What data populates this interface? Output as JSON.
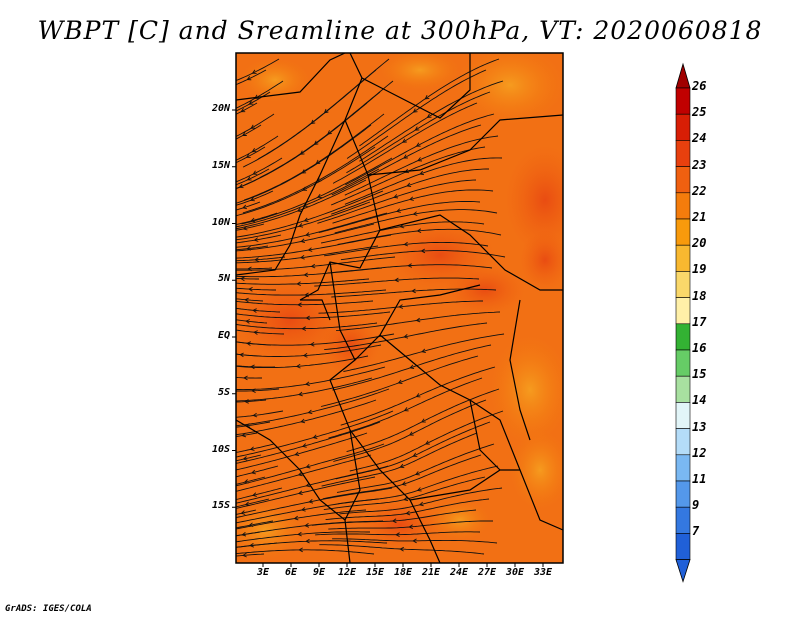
{
  "title": "WBPT [C] and Sreamline at 300hPa, VT: 2020060818",
  "credit": "GrADS: IGES/COLA",
  "map": {
    "variable": "WBPT [C]",
    "level": "300hPa",
    "valid_time": "2020060818",
    "lat_labels": [
      {
        "lat": 20,
        "text": "20N"
      },
      {
        "lat": 15,
        "text": "15N"
      },
      {
        "lat": 10,
        "text": "10N"
      },
      {
        "lat": 5,
        "text": "5N"
      },
      {
        "lat": 0,
        "text": "EQ"
      },
      {
        "lat": -5,
        "text": "5S"
      },
      {
        "lat": -10,
        "text": "10S"
      },
      {
        "lat": -15,
        "text": "15S"
      }
    ],
    "lon_labels": [
      {
        "lon": 3,
        "text": "3E"
      },
      {
        "lon": 6,
        "text": "6E"
      },
      {
        "lon": 9,
        "text": "9E"
      },
      {
        "lon": 12,
        "text": "12E"
      },
      {
        "lon": 15,
        "text": "15E"
      },
      {
        "lon": 18,
        "text": "18E"
      },
      {
        "lon": 21,
        "text": "21E"
      },
      {
        "lon": 24,
        "text": "24E"
      },
      {
        "lon": 27,
        "text": "27E"
      },
      {
        "lon": 30,
        "text": "30E"
      },
      {
        "lon": 33,
        "text": "33E"
      }
    ]
  },
  "colorbar": {
    "labels": [
      "26",
      "25",
      "24",
      "23",
      "22",
      "21",
      "20",
      "19",
      "18",
      "17",
      "16",
      "15",
      "14",
      "13",
      "12",
      "11",
      "9",
      "7"
    ],
    "colors": [
      "#c00000",
      "#d81e05",
      "#e8400e",
      "#f06010",
      "#f47c0c",
      "#f89a0c",
      "#f8b830",
      "#fad86a",
      "#fff0a8",
      "#33b233",
      "#66cc66",
      "#a8e0a0",
      "#e2f5f8",
      "#b4dcf8",
      "#7ab8f2",
      "#5498ea",
      "#3478e0",
      "#2060d8"
    ],
    "tip_colors": {
      "top": "#a00000",
      "bottom": "#2060d8"
    }
  }
}
